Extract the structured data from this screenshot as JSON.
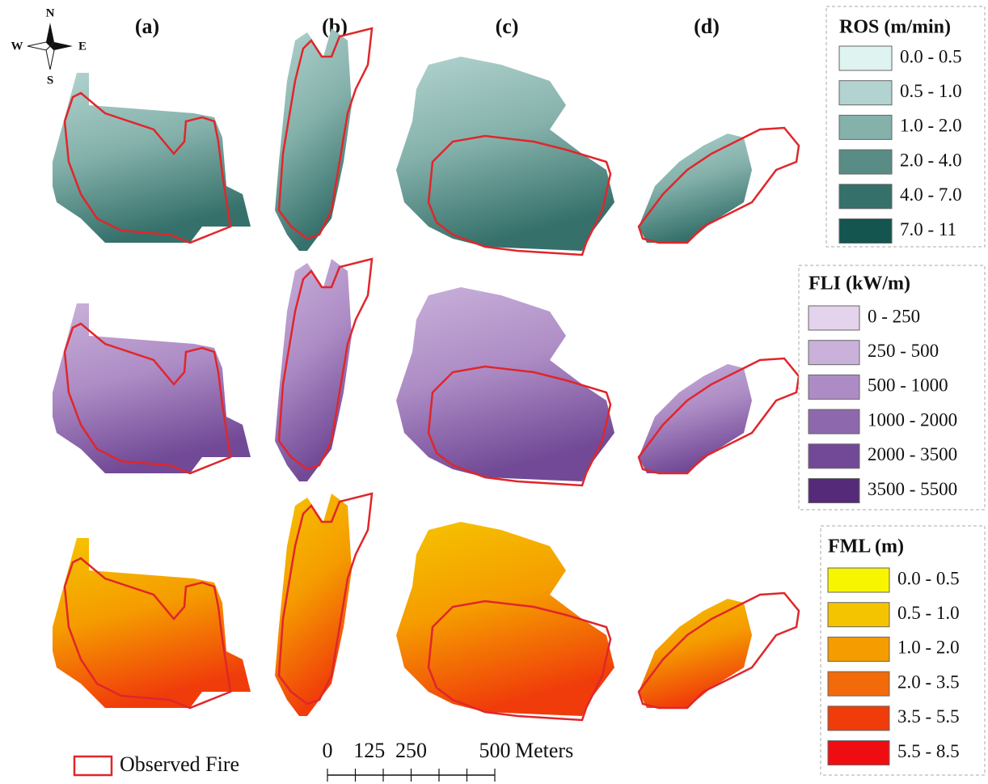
{
  "compass": {
    "north": "N",
    "south": "S",
    "west": "W",
    "east": "E"
  },
  "columns": [
    "(a)",
    "(b)",
    "(c)",
    "(d)"
  ],
  "legends": [
    {
      "title": "ROS (m/min)",
      "items": [
        {
          "label": "0.0 - 0.5",
          "color": "#dff3f0"
        },
        {
          "label": "0.5 - 1.0",
          "color": "#b2d3cf"
        },
        {
          "label": "1.0 - 2.0",
          "color": "#85b1ab"
        },
        {
          "label": "2.0 - 4.0",
          "color": "#5a8c86"
        },
        {
          "label": "4.0 - 7.0",
          "color": "#35706a"
        },
        {
          "label": "7.0 - 11",
          "color": "#145550"
        }
      ]
    },
    {
      "title": "FLI (kW/m)",
      "items": [
        {
          "label": "0 - 250",
          "color": "#e3d3ec"
        },
        {
          "label": "250 - 500",
          "color": "#c9b1da"
        },
        {
          "label": "500 - 1000",
          "color": "#ad8cc5"
        },
        {
          "label": "1000 - 2000",
          "color": "#8e68ad"
        },
        {
          "label": "2000 - 3500",
          "color": "#714996"
        },
        {
          "label": "3500 - 5500",
          "color": "#552a78"
        }
      ]
    },
    {
      "title": "FML (m)",
      "items": [
        {
          "label": "0.0 - 0.5",
          "color": "#f7f500"
        },
        {
          "label": "0.5 - 1.0",
          "color": "#f5c400"
        },
        {
          "label": "1.0 - 2.0",
          "color": "#f59c00"
        },
        {
          "label": "2.0 - 3.5",
          "color": "#f26a0a"
        },
        {
          "label": "3.5 - 5.5",
          "color": "#f03c0a"
        },
        {
          "label": "5.5 - 8.5",
          "color": "#f00d12"
        }
      ]
    }
  ],
  "observed_fire": {
    "label": "Observed Fire",
    "color": "#e0262b"
  },
  "scale_bar": {
    "ticks": [
      0,
      125,
      250,
      500
    ],
    "unit": "Meters"
  }
}
